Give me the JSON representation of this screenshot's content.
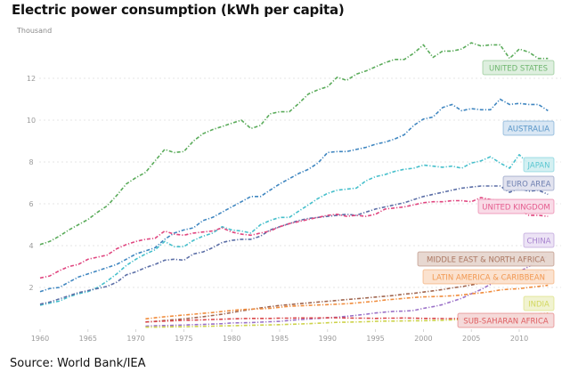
{
  "title": "Electric power consumption (kWh per capita)",
  "unit_label": "Thousand",
  "source": "Source: World Bank/IEA",
  "chart_data": {
    "type": "line",
    "title": "Electric power consumption (kWh per capita)",
    "xlabel": "",
    "ylabel": "Thousand",
    "xlim": [
      1960,
      2014
    ],
    "ylim": [
      0,
      14
    ],
    "x_ticks": [
      1960,
      1965,
      1970,
      1975,
      1980,
      1985,
      1990,
      1995,
      2000,
      2005,
      2010
    ],
    "y_ticks": [
      2,
      4,
      6,
      8,
      10,
      12
    ],
    "grid": "horizontal-dotted",
    "legend": "inline-labels-right",
    "series": [
      {
        "name": "UNITED STATES",
        "color": "#5aab5a",
        "label_bg": "#dceedd",
        "start": 1960,
        "values": [
          4.05,
          4.2,
          4.45,
          4.75,
          5.0,
          5.25,
          5.6,
          5.9,
          6.4,
          6.95,
          7.25,
          7.5,
          8.05,
          8.6,
          8.45,
          8.5,
          9.0,
          9.35,
          9.55,
          9.7,
          9.85,
          10.0,
          9.6,
          9.75,
          10.3,
          10.4,
          10.4,
          10.8,
          11.25,
          11.45,
          11.6,
          12.05,
          11.9,
          12.2,
          12.35,
          12.55,
          12.75,
          12.9,
          12.9,
          13.2,
          13.6,
          13.0,
          13.3,
          13.3,
          13.4,
          13.7,
          13.55,
          13.6,
          13.6,
          12.95,
          13.4,
          13.25,
          12.95,
          12.95
        ]
      },
      {
        "name": "AUSTRALIA",
        "color": "#3f86c0",
        "label_bg": "#d7e6f3",
        "start": 1960,
        "values": [
          1.8,
          1.95,
          2.0,
          2.25,
          2.5,
          2.65,
          2.8,
          2.95,
          3.1,
          3.35,
          3.6,
          3.75,
          3.9,
          4.3,
          4.6,
          4.75,
          4.85,
          5.2,
          5.35,
          5.6,
          5.85,
          6.1,
          6.35,
          6.35,
          6.65,
          6.95,
          7.2,
          7.45,
          7.65,
          7.95,
          8.45,
          8.5,
          8.5,
          8.6,
          8.7,
          8.85,
          8.95,
          9.1,
          9.3,
          9.75,
          10.05,
          10.15,
          10.6,
          10.75,
          10.45,
          10.55,
          10.5,
          10.5,
          11.0,
          10.75,
          10.8,
          10.75,
          10.75,
          10.45
        ]
      },
      {
        "name": "JAPAN",
        "color": "#45bfcb",
        "label_bg": "#d2eff1",
        "start": 1960,
        "values": [
          1.15,
          1.25,
          1.35,
          1.55,
          1.7,
          1.8,
          2.0,
          2.3,
          2.65,
          3.05,
          3.35,
          3.6,
          3.8,
          4.2,
          3.95,
          3.95,
          4.25,
          4.45,
          4.6,
          4.9,
          4.75,
          4.7,
          4.6,
          5.0,
          5.2,
          5.35,
          5.35,
          5.65,
          5.95,
          6.25,
          6.5,
          6.65,
          6.7,
          6.75,
          7.1,
          7.3,
          7.4,
          7.55,
          7.65,
          7.7,
          7.85,
          7.8,
          7.75,
          7.8,
          7.7,
          7.95,
          8.05,
          8.25,
          7.95,
          7.7,
          8.35,
          7.9,
          7.8
        ]
      },
      {
        "name": "EURO AREA",
        "color": "#5b6ea6",
        "label_bg": "#e0e2ee",
        "start": 1960,
        "values": [
          1.2,
          1.3,
          1.45,
          1.6,
          1.75,
          1.85,
          1.95,
          2.05,
          2.25,
          2.6,
          2.75,
          2.95,
          3.1,
          3.3,
          3.35,
          3.3,
          3.6,
          3.7,
          3.9,
          4.15,
          4.25,
          4.3,
          4.3,
          4.45,
          4.75,
          4.9,
          5.05,
          5.2,
          5.3,
          5.35,
          5.4,
          5.45,
          5.5,
          5.45,
          5.6,
          5.75,
          5.85,
          5.95,
          6.05,
          6.2,
          6.35,
          6.45,
          6.55,
          6.65,
          6.75,
          6.8,
          6.85,
          6.85,
          6.85,
          6.55,
          6.75,
          6.6,
          6.65,
          6.45
        ]
      },
      {
        "name": "UNITED KINGDOM",
        "color": "#e0457f",
        "label_bg": "#f9d9e6",
        "start": 1960,
        "values": [
          2.45,
          2.55,
          2.8,
          3.0,
          3.1,
          3.35,
          3.45,
          3.55,
          3.85,
          4.05,
          4.2,
          4.3,
          4.35,
          4.7,
          4.55,
          4.5,
          4.6,
          4.65,
          4.7,
          4.85,
          4.65,
          4.55,
          4.5,
          4.6,
          4.7,
          4.9,
          5.05,
          5.15,
          5.25,
          5.35,
          5.45,
          5.5,
          5.4,
          5.45,
          5.4,
          5.5,
          5.75,
          5.8,
          5.85,
          5.95,
          6.05,
          6.1,
          6.1,
          6.15,
          6.15,
          6.1,
          6.3,
          6.2,
          6.15,
          5.7,
          5.75,
          5.45,
          5.45,
          5.4
        ]
      },
      {
        "name": "CHINA",
        "color": "#9b72c8",
        "label_bg": "#ebe2f4",
        "start": 1971,
        "values": [
          0.15,
          0.17,
          0.18,
          0.19,
          0.2,
          0.22,
          0.23,
          0.25,
          0.27,
          0.3,
          0.31,
          0.32,
          0.34,
          0.36,
          0.38,
          0.42,
          0.46,
          0.49,
          0.52,
          0.55,
          0.58,
          0.62,
          0.67,
          0.72,
          0.78,
          0.82,
          0.86,
          0.87,
          0.9,
          1.0,
          1.08,
          1.18,
          1.33,
          1.48,
          1.7,
          1.9,
          2.15,
          2.45,
          2.6,
          2.75,
          3.0,
          3.3,
          3.5
        ]
      },
      {
        "name": "MIDDLE EAST & NORTH AFRICA",
        "color": "#a0654e",
        "label_bg": "#e6d6cf",
        "start": 1971,
        "values": [
          0.35,
          0.38,
          0.42,
          0.46,
          0.5,
          0.55,
          0.6,
          0.66,
          0.72,
          0.8,
          0.88,
          0.95,
          1.02,
          1.08,
          1.14,
          1.18,
          1.22,
          1.26,
          1.3,
          1.34,
          1.38,
          1.42,
          1.46,
          1.5,
          1.54,
          1.58,
          1.62,
          1.68,
          1.72,
          1.78,
          1.84,
          1.9,
          1.98,
          2.04,
          2.12,
          2.22,
          2.32,
          2.42,
          2.5,
          2.6,
          2.68,
          2.75,
          2.82
        ]
      },
      {
        "name": "LATIN AMERICA & CARIBBEAN",
        "color": "#f08c3c",
        "label_bg": "#fbe0cc",
        "start": 1971,
        "values": [
          0.5,
          0.55,
          0.6,
          0.64,
          0.68,
          0.72,
          0.76,
          0.8,
          0.85,
          0.9,
          0.94,
          0.96,
          0.98,
          1.0,
          1.05,
          1.1,
          1.12,
          1.14,
          1.16,
          1.18,
          1.2,
          1.22,
          1.26,
          1.3,
          1.34,
          1.4,
          1.44,
          1.48,
          1.52,
          1.55,
          1.56,
          1.58,
          1.6,
          1.64,
          1.7,
          1.74,
          1.8,
          1.88,
          1.92,
          1.94,
          2.0,
          2.05,
          2.1
        ]
      },
      {
        "name": "INDIA",
        "color": "#cdd24a",
        "label_bg": "#f0f2cf",
        "start": 1971,
        "values": [
          0.1,
          0.1,
          0.11,
          0.12,
          0.12,
          0.13,
          0.14,
          0.15,
          0.16,
          0.17,
          0.18,
          0.19,
          0.2,
          0.21,
          0.22,
          0.24,
          0.25,
          0.27,
          0.29,
          0.31,
          0.33,
          0.34,
          0.35,
          0.36,
          0.38,
          0.39,
          0.39,
          0.4,
          0.41,
          0.41,
          0.42,
          0.43,
          0.45,
          0.47,
          0.49,
          0.52,
          0.55,
          0.58,
          0.62,
          0.65,
          0.7,
          0.73,
          0.76
        ]
      },
      {
        "name": "SUB-SAHARAN AFRICA",
        "color": "#d9464a",
        "label_bg": "#f4d8d8",
        "start": 1971,
        "values": [
          0.35,
          0.37,
          0.39,
          0.41,
          0.43,
          0.44,
          0.45,
          0.47,
          0.48,
          0.5,
          0.51,
          0.52,
          0.52,
          0.52,
          0.53,
          0.53,
          0.54,
          0.54,
          0.54,
          0.55,
          0.55,
          0.54,
          0.53,
          0.53,
          0.52,
          0.53,
          0.53,
          0.54,
          0.53,
          0.52,
          0.52,
          0.51,
          0.51,
          0.52,
          0.53,
          0.53,
          0.53,
          0.53,
          0.52,
          0.51,
          0.52,
          0.51,
          0.51
        ]
      }
    ]
  }
}
